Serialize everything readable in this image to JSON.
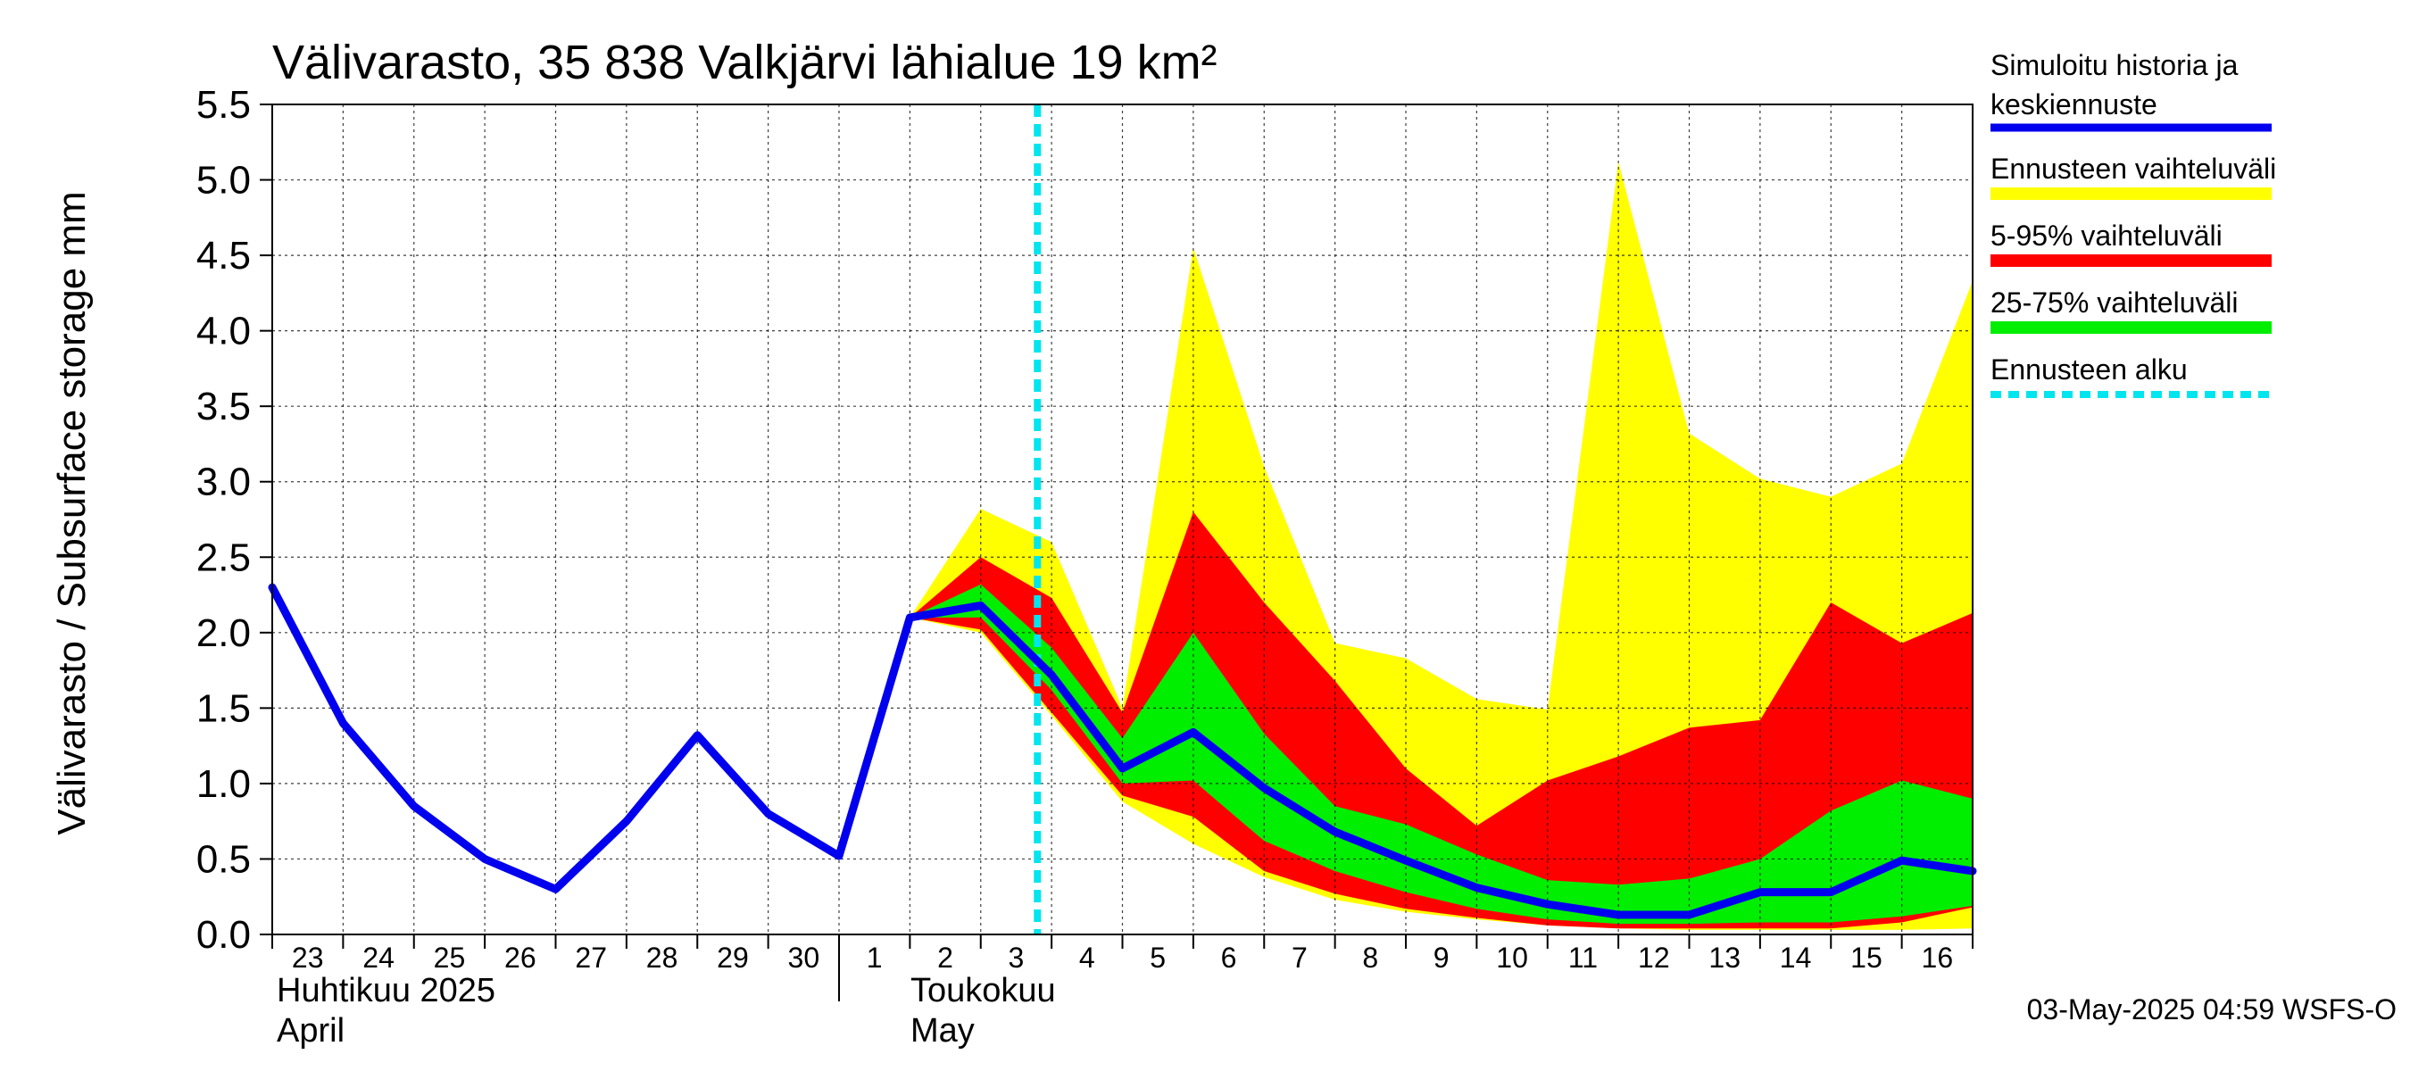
{
  "chart_data": {
    "type": "area",
    "title": "Välivarasto, 35 838 Valkjärvi lähialue 19 km²",
    "ylabel": "Välivarasto / Subsurface storage  mm",
    "xlabel": "",
    "ylim": [
      0,
      5.5
    ],
    "yticks": [
      "0.0",
      "0.5",
      "1.0",
      "1.5",
      "2.0",
      "2.5",
      "3.0",
      "3.5",
      "4.0",
      "4.5",
      "5.0",
      "5.5"
    ],
    "x_tick_labels": [
      "23",
      "24",
      "25",
      "26",
      "27",
      "28",
      "29",
      "30",
      "1",
      "2",
      "3",
      "4",
      "5",
      "6",
      "7",
      "8",
      "9",
      "10",
      "11",
      "12",
      "13",
      "14",
      "15",
      "16"
    ],
    "month_labels": [
      {
        "line1": "Huhtikuu  2025",
        "line2": "April"
      },
      {
        "line1": "Toukokuu",
        "line2": "May"
      }
    ],
    "grid": true,
    "legend_position": "right",
    "forecast_start_day": 10.8,
    "series": [
      {
        "name": "Simuloitu historia ja keskiennuste",
        "color": "#0000ee",
        "x": [
          0,
          1,
          2,
          3,
          4,
          5,
          6,
          7,
          8,
          9,
          10,
          11,
          12,
          13,
          14,
          15,
          16,
          17,
          18,
          19,
          20,
          21,
          22,
          23,
          24
        ],
        "values": [
          2.3,
          1.4,
          0.85,
          0.5,
          0.3,
          0.75,
          1.32,
          0.8,
          0.52,
          2.1,
          2.18,
          1.72,
          1.1,
          1.34,
          0.97,
          0.68,
          0.49,
          0.31,
          0.2,
          0.13,
          0.13,
          0.28,
          0.28,
          0.49,
          0.42
        ]
      }
    ],
    "bands": [
      {
        "name": "Ennusteen vaihteluväli",
        "color": "#ffff00",
        "x": [
          9,
          10,
          11,
          12,
          13,
          14,
          15,
          16,
          17,
          18,
          19,
          20,
          21,
          22,
          23,
          24
        ],
        "upper": [
          2.1,
          2.82,
          2.6,
          1.5,
          4.55,
          3.1,
          1.93,
          1.83,
          1.56,
          1.49,
          5.12,
          3.32,
          3.02,
          2.9,
          3.12,
          4.33
        ],
        "lower": [
          2.1,
          2.0,
          1.45,
          0.88,
          0.6,
          0.38,
          0.23,
          0.15,
          0.1,
          0.06,
          0.04,
          0.03,
          0.03,
          0.03,
          0.03,
          0.04
        ]
      },
      {
        "name": "5-95% vaihteluväli",
        "color": "#ff0000",
        "x": [
          9,
          10,
          11,
          12,
          13,
          14,
          15,
          16,
          17,
          18,
          19,
          20,
          21,
          22,
          23,
          24
        ],
        "upper": [
          2.1,
          2.5,
          2.23,
          1.47,
          2.8,
          2.2,
          1.68,
          1.1,
          0.72,
          1.02,
          1.18,
          1.37,
          1.42,
          2.2,
          1.93,
          2.13
        ],
        "lower": [
          2.1,
          2.02,
          1.47,
          0.92,
          0.78,
          0.42,
          0.27,
          0.17,
          0.11,
          0.06,
          0.04,
          0.04,
          0.04,
          0.04,
          0.08,
          0.18
        ]
      },
      {
        "name": "25-75% vaihteluväli",
        "color": "#00ee00",
        "x": [
          9,
          10,
          11,
          12,
          13,
          14,
          15,
          16,
          17,
          18,
          19,
          20,
          21,
          22,
          23,
          24
        ],
        "upper": [
          2.1,
          2.32,
          1.9,
          1.3,
          2.0,
          1.33,
          0.85,
          0.73,
          0.53,
          0.36,
          0.33,
          0.37,
          0.5,
          0.82,
          1.02,
          0.9
        ],
        "lower": [
          2.1,
          2.1,
          1.62,
          1.0,
          1.02,
          0.62,
          0.42,
          0.28,
          0.17,
          0.1,
          0.07,
          0.07,
          0.08,
          0.08,
          0.12,
          0.19
        ]
      }
    ],
    "forecast_marker": {
      "name": "Ennusteen alku",
      "color": "#00e5ee"
    },
    "timestamp": "03-May-2025 04:59 WSFS-O"
  }
}
